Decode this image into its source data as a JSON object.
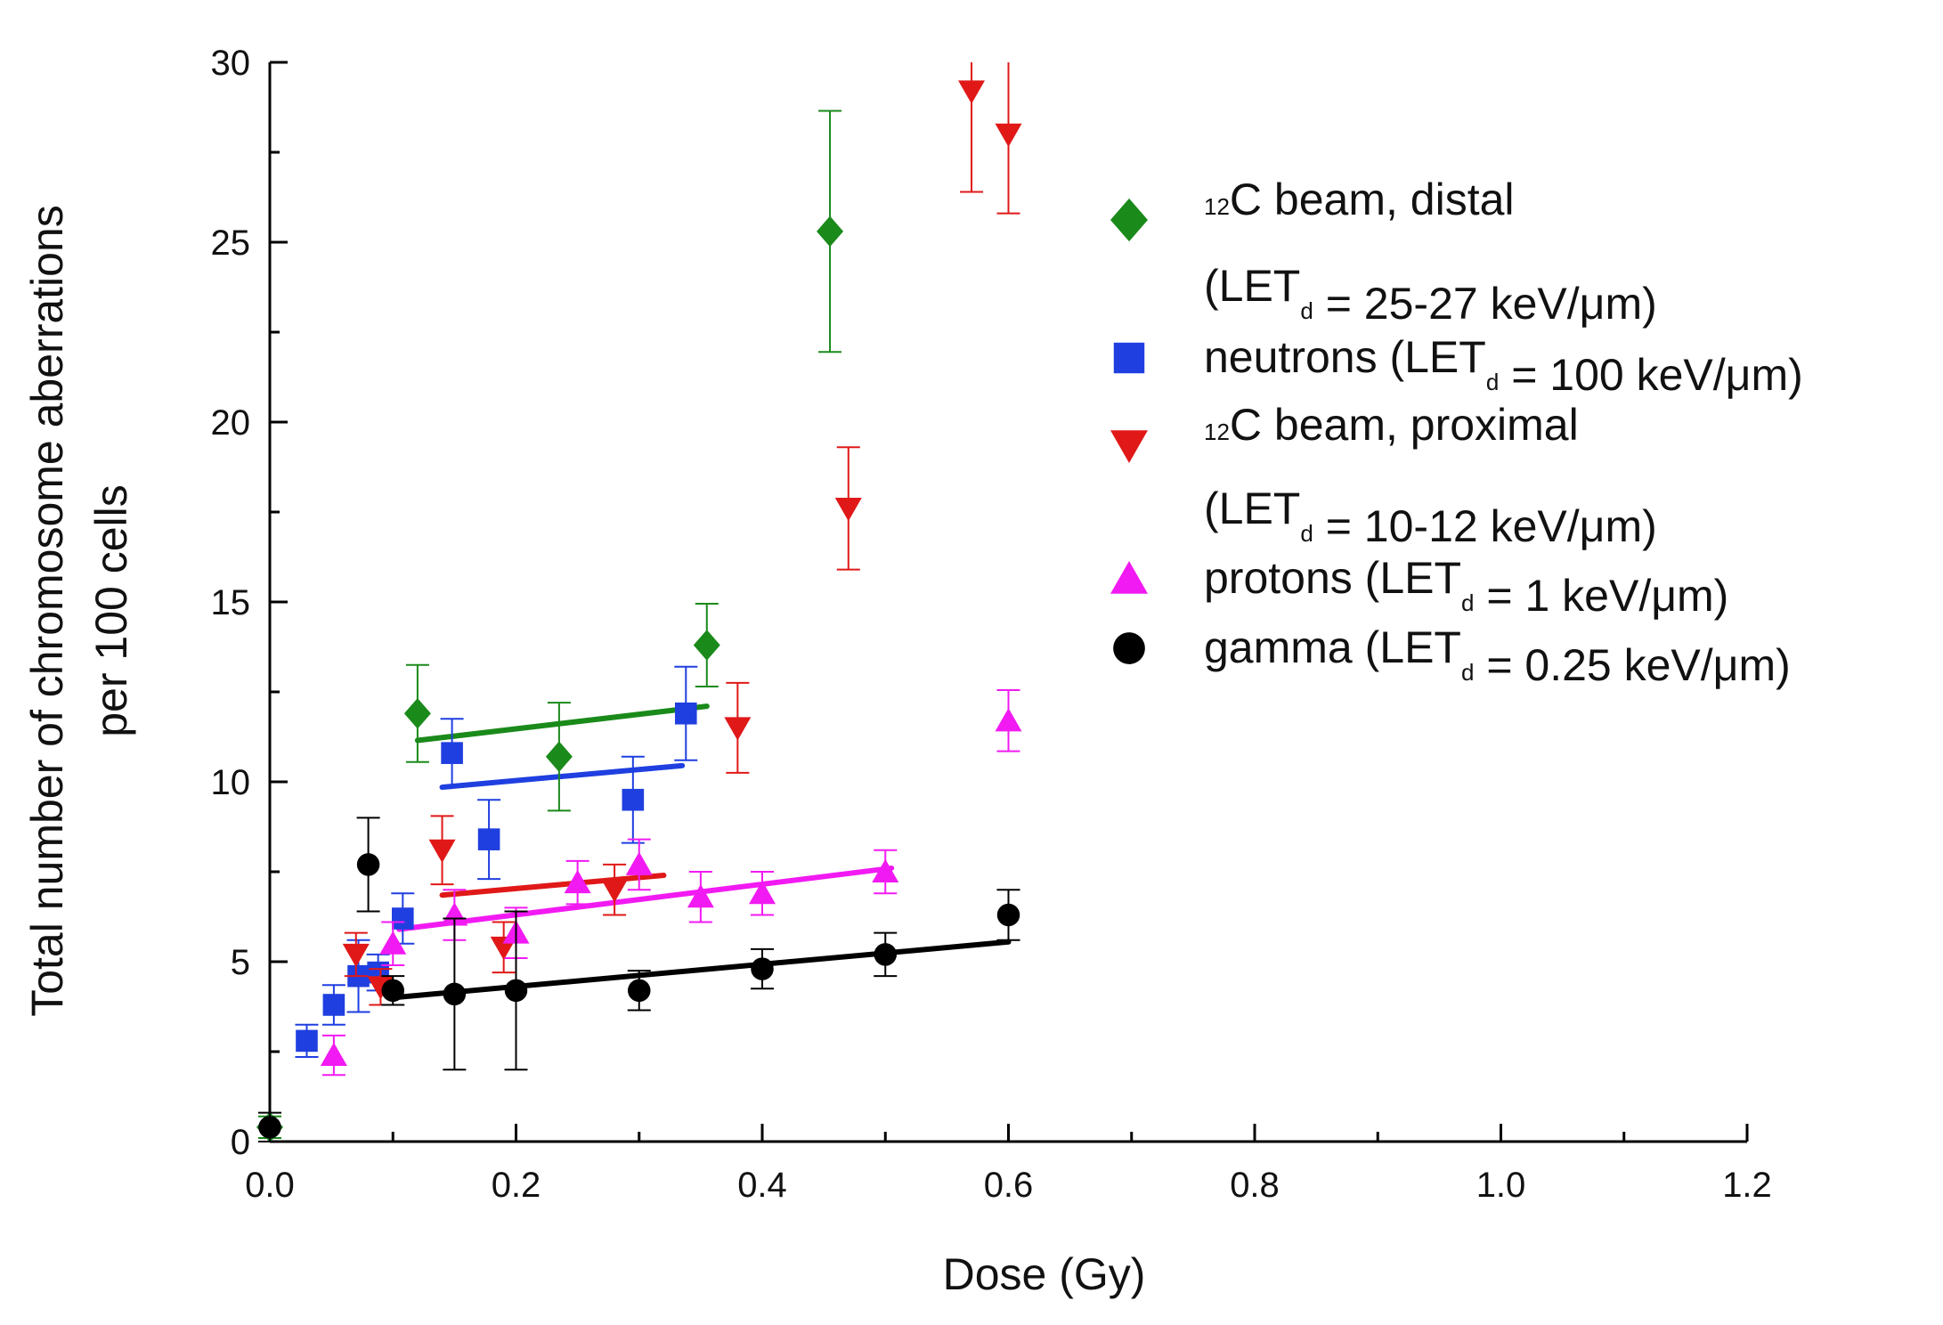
{
  "chart_data": {
    "type": "scatter",
    "title": "",
    "xlabel": "Dose (Gy)",
    "ylabel": [
      "Total number of chromosome aberrations",
      "per 100 cells"
    ],
    "xlim": [
      0,
      1.2
    ],
    "ylim": [
      0,
      30
    ],
    "xticks": [
      "0.0",
      "0.2",
      "0.4",
      "0.6",
      "0.8",
      "1.0",
      "1.2"
    ],
    "xtick_values": [
      0,
      0.2,
      0.4,
      0.6,
      0.8,
      1.0,
      1.2
    ],
    "yticks": [
      "0",
      "5",
      "10",
      "15",
      "20",
      "25",
      "30"
    ],
    "ytick_values": [
      0,
      5,
      10,
      15,
      20,
      25,
      30
    ],
    "grid": false,
    "legend_position": "right",
    "series": [
      {
        "key": "distal",
        "legend": [
          [
            {
              "t": "12",
              "s": "sup"
            },
            {
              "t": "C beam, distal"
            }
          ],
          [
            {
              "t": "(LET"
            },
            {
              "t": "d",
              "s": "sub"
            },
            {
              "t": " = 25-27 keV/μm)"
            }
          ]
        ],
        "marker": "diamond",
        "color": "#1a8a1a",
        "points": [
          {
            "x": 0.0,
            "y": 0.4,
            "err": 0.3
          },
          {
            "x": 0.12,
            "y": 11.9,
            "err": 1.35
          },
          {
            "x": 0.235,
            "y": 10.7,
            "err": 1.5
          },
          {
            "x": 0.355,
            "y": 13.8,
            "err": 1.15
          },
          {
            "x": 0.455,
            "y": 25.3,
            "err": 3.35
          }
        ],
        "fit": {
          "x": [
            0.12,
            0.355
          ],
          "y": [
            11.15,
            12.1
          ]
        }
      },
      {
        "key": "neutrons",
        "legend": [
          [
            {
              "t": "neutrons (LET"
            },
            {
              "t": "d",
              "s": "sub"
            },
            {
              "t": " = 100 keV/μm)"
            }
          ]
        ],
        "marker": "square",
        "color": "#1f3fe0",
        "points": [
          {
            "x": 0.03,
            "y": 2.8,
            "err": 0.45
          },
          {
            "x": 0.052,
            "y": 3.8,
            "err": 0.55
          },
          {
            "x": 0.072,
            "y": 4.6,
            "err": 1.0
          },
          {
            "x": 0.088,
            "y": 4.7,
            "err": 0.5
          },
          {
            "x": 0.108,
            "y": 6.2,
            "err": 0.7
          },
          {
            "x": 0.148,
            "y": 10.8,
            "err": 0.95
          },
          {
            "x": 0.178,
            "y": 8.4,
            "err": 1.1
          },
          {
            "x": 0.295,
            "y": 9.5,
            "err": 1.2
          },
          {
            "x": 0.338,
            "y": 11.9,
            "err": 1.3
          }
        ],
        "fit": {
          "x": [
            0.14,
            0.335
          ],
          "y": [
            9.85,
            10.45
          ]
        }
      },
      {
        "key": "proximal",
        "legend": [
          [
            {
              "t": "12",
              "s": "sup"
            },
            {
              "t": "C beam, proximal"
            }
          ],
          [
            {
              "t": " (LET"
            },
            {
              "t": "d",
              "s": "sub"
            },
            {
              "t": " = 10-12 keV/μm)"
            }
          ]
        ],
        "marker": "triangle-down",
        "color": "#e01818",
        "points": [
          {
            "x": 0.07,
            "y": 5.2,
            "err": 0.6
          },
          {
            "x": 0.09,
            "y": 4.3,
            "err": 0.5
          },
          {
            "x": 0.14,
            "y": 8.1,
            "err": 0.95
          },
          {
            "x": 0.19,
            "y": 5.4,
            "err": 0.7
          },
          {
            "x": 0.28,
            "y": 7.0,
            "err": 0.7
          },
          {
            "x": 0.38,
            "y": 11.5,
            "err": 1.25
          },
          {
            "x": 0.47,
            "y": 17.6,
            "err": 1.7
          },
          {
            "x": 0.57,
            "y": 29.2,
            "err": 2.8
          },
          {
            "x": 0.6,
            "y": 28.0,
            "err": 2.2
          }
        ],
        "fit": {
          "x": [
            0.14,
            0.32
          ],
          "y": [
            6.85,
            7.4
          ]
        }
      },
      {
        "key": "protons",
        "legend": [
          [
            {
              "t": "protons (LET"
            },
            {
              "t": "d",
              "s": "sub"
            },
            {
              "t": " = 1 keV/μm)"
            }
          ]
        ],
        "marker": "triangle-up",
        "color": "#f21af2",
        "points": [
          {
            "x": 0.052,
            "y": 2.4,
            "err": 0.55
          },
          {
            "x": 0.1,
            "y": 5.5,
            "err": 0.6
          },
          {
            "x": 0.15,
            "y": 6.3,
            "err": 0.7
          },
          {
            "x": 0.2,
            "y": 5.8,
            "err": 0.7
          },
          {
            "x": 0.25,
            "y": 7.2,
            "err": 0.6
          },
          {
            "x": 0.3,
            "y": 7.7,
            "err": 0.7
          },
          {
            "x": 0.35,
            "y": 6.8,
            "err": 0.7
          },
          {
            "x": 0.4,
            "y": 6.9,
            "err": 0.6
          },
          {
            "x": 0.5,
            "y": 7.5,
            "err": 0.6
          },
          {
            "x": 0.6,
            "y": 11.7,
            "err": 0.85
          }
        ],
        "fit": {
          "x": [
            0.105,
            0.505
          ],
          "y": [
            5.9,
            7.6
          ]
        }
      },
      {
        "key": "gamma",
        "legend": [
          [
            {
              "t": "gamma (LET"
            },
            {
              "t": "d",
              "s": "sub"
            },
            {
              "t": " = 0.25 keV/μm)"
            }
          ]
        ],
        "marker": "circle",
        "color": "#000000",
        "points": [
          {
            "x": 0.0,
            "y": 0.4,
            "err": 0.4
          },
          {
            "x": 0.08,
            "y": 7.7,
            "err": 1.3
          },
          {
            "x": 0.1,
            "y": 4.2,
            "err": 0.4
          },
          {
            "x": 0.15,
            "y": 4.1,
            "err": 2.1
          },
          {
            "x": 0.2,
            "y": 4.2,
            "err": 2.2
          },
          {
            "x": 0.3,
            "y": 4.2,
            "err": 0.55
          },
          {
            "x": 0.4,
            "y": 4.8,
            "err": 0.55
          },
          {
            "x": 0.5,
            "y": 5.2,
            "err": 0.6
          },
          {
            "x": 0.6,
            "y": 6.3,
            "err": 0.7
          }
        ],
        "fit": {
          "x": [
            0.1,
            0.6
          ],
          "y": [
            4.0,
            5.55
          ]
        }
      }
    ]
  }
}
